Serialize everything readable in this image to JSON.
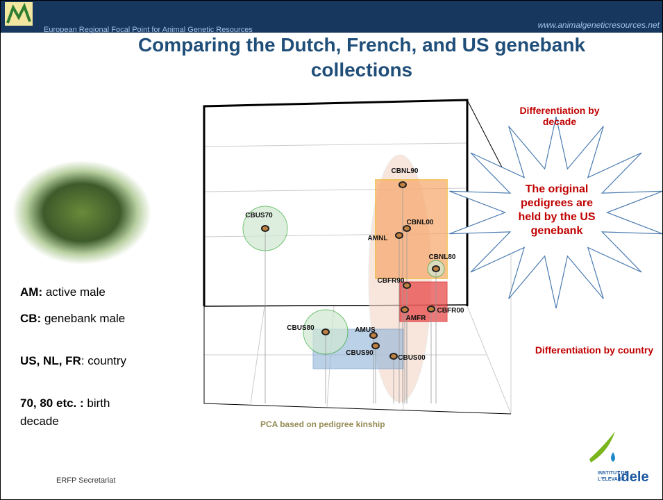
{
  "header": {
    "organization": "European Regional Focal Point for Animal Genetic Resources",
    "url": "www.animalgeneticresources.net"
  },
  "title": "Comparing the Dutch, French, and US genebank collections",
  "legend": [
    {
      "term": "AM:",
      "definition": "active male"
    },
    {
      "term": "CB:",
      "definition": "genebank male"
    },
    {
      "term": "US, NL, FR",
      "definition": ": country"
    },
    {
      "term": "70, 80 etc. :",
      "definition": "birth decade"
    }
  ],
  "figure": {
    "points": [
      "CBNL90",
      "CBNL00",
      "AMNL",
      "CBUS70",
      "CBNL80",
      "CBFR90",
      "CBFR00",
      "AMFR",
      "CBUS80",
      "AMUS",
      "CBUS90",
      "CBUS00"
    ],
    "annotations": {
      "decade": "Differentiation by decade",
      "callout": "The original pedigrees are held by the US genebank",
      "country": "Differentiation by country"
    },
    "caption": "PCA based on pedigree kinship"
  },
  "footer": "ERFP Secretariat",
  "logo": {
    "line1": "INSTITUT DE",
    "line2": "L'ELEVAGE",
    "brand": "idele"
  }
}
